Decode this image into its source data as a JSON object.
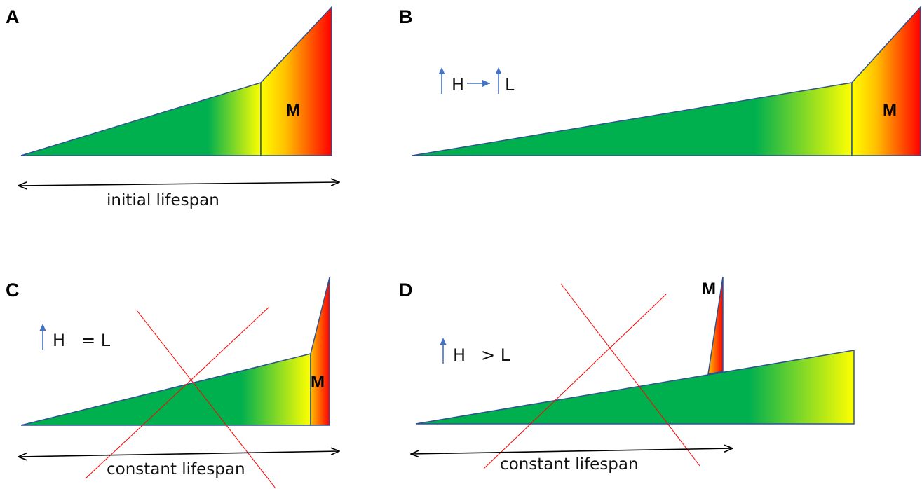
{
  "panels": {
    "a": {
      "letter": "A",
      "m_label": "M",
      "caption": "initial lifespan"
    },
    "b": {
      "letter": "B",
      "m_label": "M",
      "h_symbol": "H",
      "l_symbol": "L"
    },
    "c": {
      "letter": "C",
      "m_label": "M",
      "h_symbol": "H",
      "relation": "= L",
      "caption": "constant lifespan"
    },
    "d": {
      "letter": "D",
      "m_label": "M",
      "h_symbol": "H",
      "relation": "> L",
      "caption": "constant lifespan"
    }
  },
  "colors": {
    "healthspan_green": "#00b04f",
    "transition_yellow": "#ffff00",
    "morbidity_orange": "#ffc000",
    "morbidity_red": "#ff0000",
    "outline": "#2f528f",
    "cross_lines": "#ff0000",
    "up_arrow": "#4472c4"
  }
}
